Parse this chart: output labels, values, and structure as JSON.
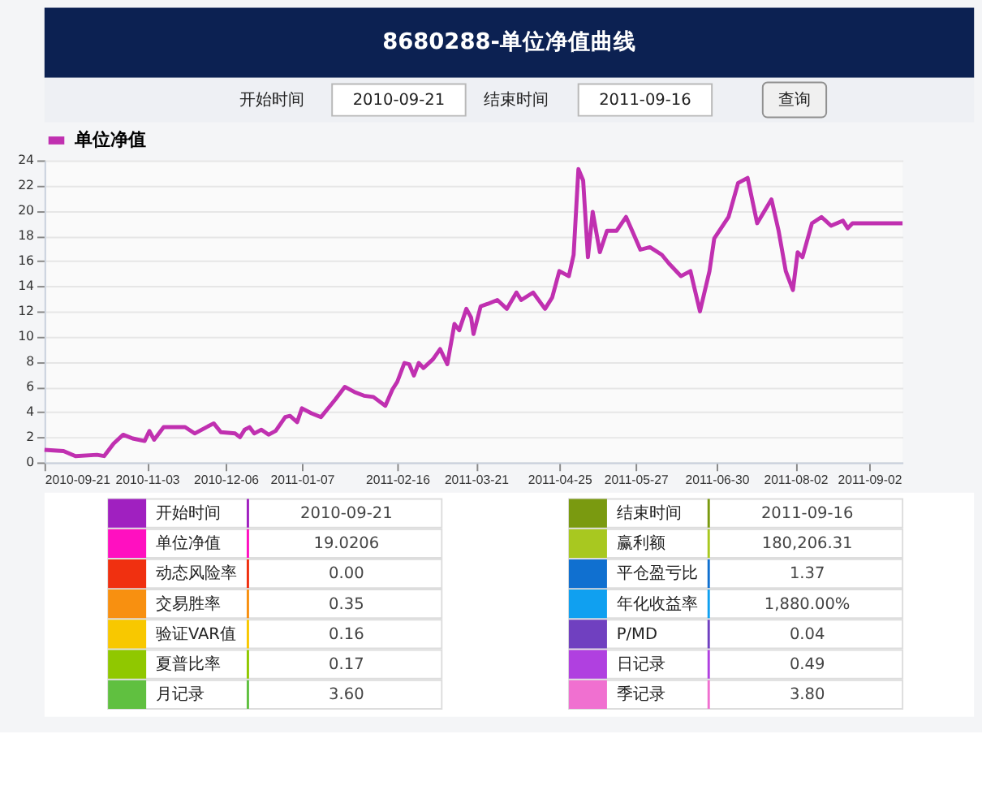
{
  "chart_data": [
    {
      "type": "other",
      "title": "8680288-单位净值曲线",
      "annotations": [
        "开始时间",
        "2010-09-21",
        "结束时间",
        "2011-09-16",
        "查询"
      ]
    },
    {
      "type": "line",
      "x": [
        "2010-09-21",
        "2010-09-29",
        "2010-10-04",
        "2010-10-13",
        "2010-10-16",
        "2010-10-20",
        "2010-10-24",
        "2010-10-28",
        "2010-11-02",
        "2010-11-04",
        "2010-11-06",
        "2010-11-10",
        "2010-11-19",
        "2010-11-23",
        "2010-12-01",
        "2010-12-04",
        "2010-12-10",
        "2010-12-12",
        "2010-12-14",
        "2010-12-16",
        "2010-12-18",
        "2010-12-21",
        "2010-12-24",
        "2010-12-27",
        "2010-12-31",
        "2011-01-02",
        "2011-01-05",
        "2011-01-07",
        "2011-01-11",
        "2011-01-15",
        "2011-01-21",
        "2011-01-25",
        "2011-01-29",
        "2011-02-02",
        "2011-02-06",
        "2011-02-11",
        "2011-02-14",
        "2011-02-16",
        "2011-02-19",
        "2011-02-21",
        "2011-02-23",
        "2011-02-25",
        "2011-02-27",
        "2011-03-03",
        "2011-03-06",
        "2011-03-09",
        "2011-03-12",
        "2011-03-14",
        "2011-03-17",
        "2011-03-19",
        "2011-03-20",
        "2011-03-23",
        "2011-03-26",
        "2011-03-30",
        "2011-04-03",
        "2011-04-07",
        "2011-04-09",
        "2011-04-14",
        "2011-04-19",
        "2011-04-22",
        "2011-04-25",
        "2011-04-29",
        "2011-05-01",
        "2011-05-03",
        "2011-05-05",
        "2011-05-07",
        "2011-05-09",
        "2011-05-12",
        "2011-05-15",
        "2011-05-19",
        "2011-05-23",
        "2011-05-26",
        "2011-05-29",
        "2011-06-02",
        "2011-06-07",
        "2011-06-10",
        "2011-06-15",
        "2011-06-19",
        "2011-06-23",
        "2011-06-27",
        "2011-06-29",
        "2011-07-05",
        "2011-07-09",
        "2011-07-13",
        "2011-07-17",
        "2011-07-23",
        "2011-07-26",
        "2011-07-29",
        "2011-08-01",
        "2011-08-03",
        "2011-08-05",
        "2011-08-09",
        "2011-08-13",
        "2011-08-17",
        "2011-08-22",
        "2011-08-24",
        "2011-08-26",
        "2011-08-30",
        "2011-09-16"
      ],
      "series": [
        {
          "name": "单位净值",
          "color": "#c030b0",
          "values": [
            1.0,
            0.9,
            0.5,
            0.6,
            0.5,
            1.5,
            2.2,
            1.9,
            1.7,
            2.5,
            1.8,
            2.8,
            2.8,
            2.3,
            3.1,
            2.4,
            2.3,
            2.0,
            2.6,
            2.8,
            2.3,
            2.6,
            2.2,
            2.5,
            3.6,
            3.7,
            3.2,
            4.3,
            3.9,
            3.6,
            5.0,
            6.0,
            5.6,
            5.3,
            5.2,
            4.5,
            5.8,
            6.4,
            7.9,
            7.8,
            6.9,
            7.9,
            7.5,
            8.2,
            9.0,
            7.8,
            11.0,
            10.5,
            12.2,
            11.5,
            10.2,
            12.4,
            12.6,
            12.9,
            12.2,
            13.5,
            12.9,
            13.5,
            12.2,
            13.1,
            15.2,
            14.8,
            16.5,
            23.3,
            22.4,
            16.3,
            19.9,
            16.7,
            18.4,
            18.4,
            19.5,
            18.2,
            16.9,
            17.1,
            16.5,
            15.8,
            14.8,
            15.2,
            12.0,
            15.2,
            17.8,
            19.5,
            22.2,
            22.6,
            19.0,
            20.9,
            18.4,
            15.2,
            13.7,
            16.7,
            16.3,
            19.0,
            19.5,
            18.8,
            19.2,
            18.6,
            19.0,
            19.0,
            19.0
          ]
        }
      ],
      "xlim": [
        "2010-09-21",
        "2011-09-16"
      ],
      "xticks": [
        "2010-09-21",
        "2010-11-03",
        "2010-12-06",
        "2011-01-07",
        "2011-02-16",
        "2011-03-21",
        "2011-04-25",
        "2011-05-27",
        "2011-06-30",
        "2011-08-02",
        "2011-09-02"
      ],
      "ylim": [
        0,
        24
      ],
      "yticks": [
        0,
        2,
        4,
        6,
        8,
        10,
        12,
        14,
        16,
        18,
        20,
        22,
        24
      ],
      "grid": "y",
      "legend": "top",
      "marker": "none",
      "line_style": "solid"
    },
    {
      "type": "other",
      "annotations": [
        "开始时间",
        "2010-09-21",
        "单位净值",
        "19.0206",
        "动态风险率",
        "0.00",
        "交易胜率",
        "0.35",
        "验证VAR值",
        "0.16",
        "夏普比率",
        "0.17",
        "月记录",
        "3.60",
        "结束时间",
        "2011-09-16",
        "赢利额",
        "180,206.31",
        "平仓盈亏比",
        "1.37",
        "年化收益率",
        "1,880.00%",
        "P/MD",
        "0.04",
        "日记录",
        "0.49",
        "季记录",
        "3.80"
      ],
      "colors": [
        "#a020c0",
        "#ff10c0",
        "#f03010",
        "#f89010",
        "#f8c800",
        "#90c800",
        "#60c040",
        "#7a9a10",
        "#a8c820",
        "#1070d0",
        "#10a0f0",
        "#7040c0",
        "#b040e0",
        "#f070d0"
      ]
    }
  ]
}
